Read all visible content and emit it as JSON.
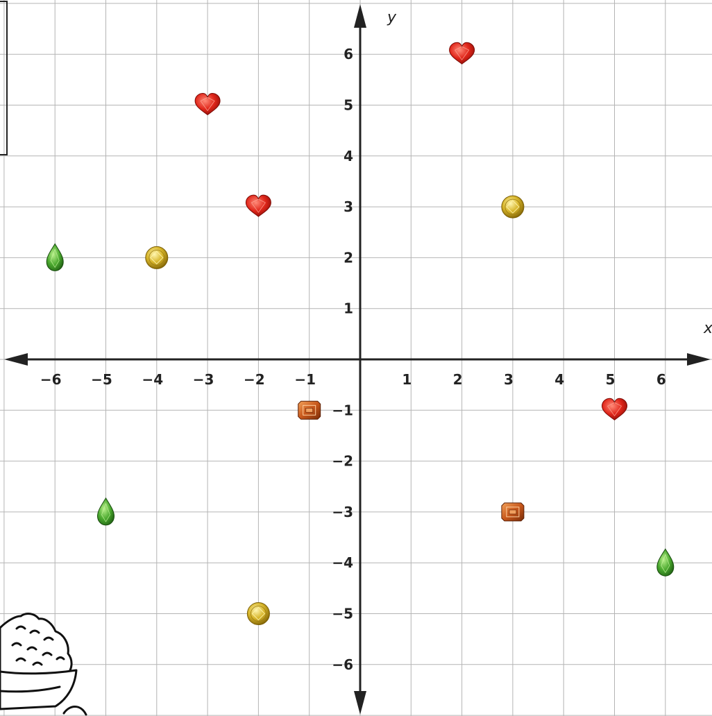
{
  "chart_data": {
    "type": "scatter",
    "xlabel": "x",
    "ylabel": "y",
    "xlim": [
      -7,
      7
    ],
    "ylim": [
      -7,
      7
    ],
    "grid": true,
    "x_ticks": [
      {
        "value": -6,
        "label": "−6"
      },
      {
        "value": -5,
        "label": "−5"
      },
      {
        "value": -4,
        "label": "−4"
      },
      {
        "value": -3,
        "label": "−3"
      },
      {
        "value": -2,
        "label": "−2"
      },
      {
        "value": -1,
        "label": "−1"
      },
      {
        "value": 1,
        "label": "1"
      },
      {
        "value": 2,
        "label": "2"
      },
      {
        "value": 3,
        "label": "3"
      },
      {
        "value": 4,
        "label": "4"
      },
      {
        "value": 5,
        "label": "5"
      },
      {
        "value": 6,
        "label": "6"
      }
    ],
    "y_ticks": [
      {
        "value": 6,
        "label": "6"
      },
      {
        "value": 5,
        "label": "5"
      },
      {
        "value": 4,
        "label": "4"
      },
      {
        "value": 3,
        "label": "3"
      },
      {
        "value": 2,
        "label": "2"
      },
      {
        "value": 1,
        "label": "1"
      },
      {
        "value": -1,
        "label": "−1"
      },
      {
        "value": -2,
        "label": "−2"
      },
      {
        "value": -3,
        "label": "−3"
      },
      {
        "value": -4,
        "label": "−4"
      },
      {
        "value": -5,
        "label": "−5"
      },
      {
        "value": -6,
        "label": "−6"
      }
    ],
    "series": [
      {
        "marker": "red-heart-gem",
        "color": "#d8231a",
        "points": [
          [
            -3,
            5
          ],
          [
            -2,
            3
          ],
          [
            2,
            6
          ],
          [
            5,
            -1
          ]
        ]
      },
      {
        "marker": "yellow-round-gem",
        "color": "#c9a820",
        "points": [
          [
            -4,
            2
          ],
          [
            3,
            3
          ],
          [
            -2,
            -5
          ]
        ]
      },
      {
        "marker": "green-teardrop-gem",
        "color": "#3e9a2a",
        "points": [
          [
            -6,
            2
          ],
          [
            -5,
            -3
          ],
          [
            6,
            -4
          ]
        ]
      },
      {
        "marker": "orange-emerald-cut-gem",
        "color": "#c8581c",
        "points": [
          [
            -1,
            -1
          ],
          [
            3,
            -3
          ]
        ]
      }
    ]
  },
  "decorations": {
    "corner_cartoon_icon": "pinecone-in-basket-icon",
    "top_left_box": "partial-frame"
  }
}
